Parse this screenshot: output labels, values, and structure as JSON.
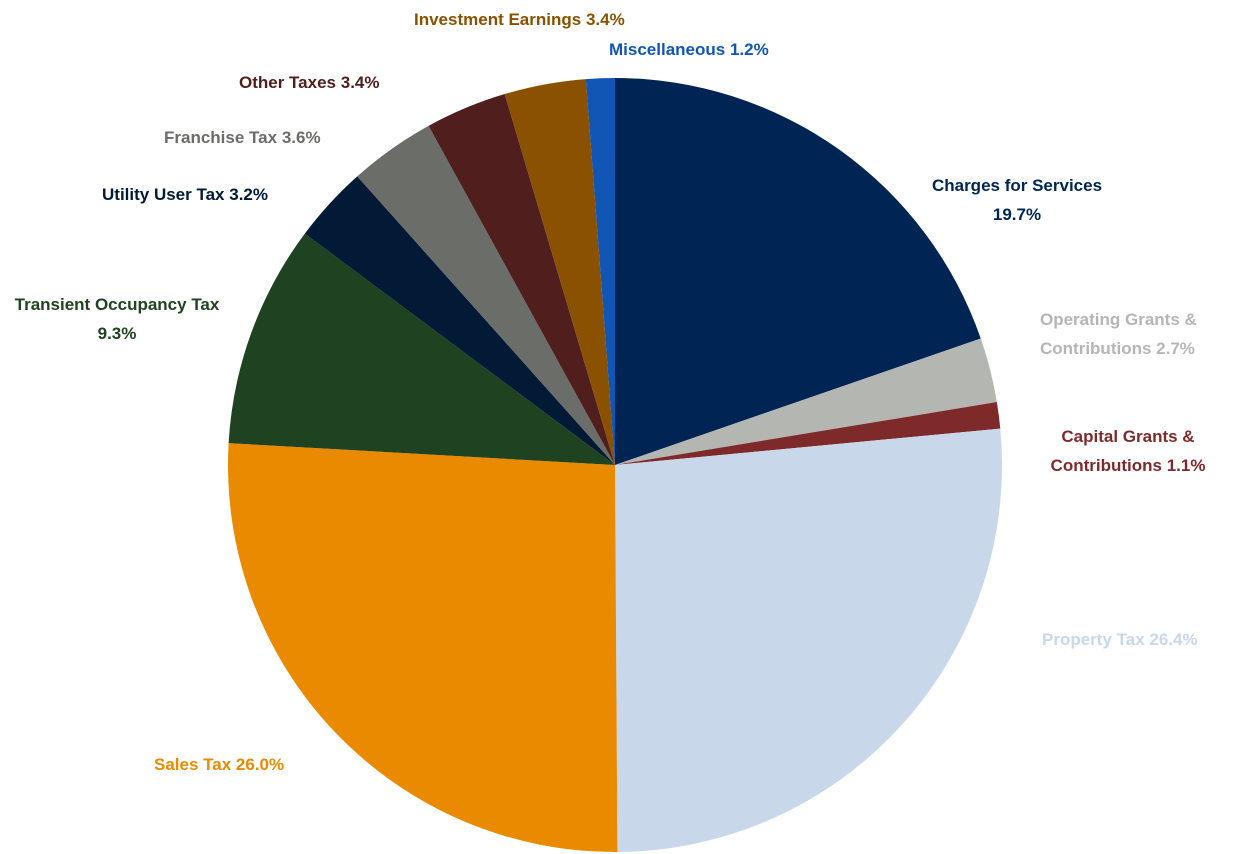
{
  "chart_data": {
    "type": "pie",
    "categories": [
      "Charges for Services",
      "Operating Grants & Contributions",
      "Capital Grants & Contributions",
      "Property Tax",
      "Sales Tax",
      "Transient Occupancy Tax",
      "Utility User Tax",
      "Franchise Tax",
      "Other Taxes",
      "Investment Earnings",
      "Miscellaneous"
    ],
    "values": [
      19.7,
      2.7,
      1.1,
      26.4,
      26.0,
      9.3,
      3.2,
      3.6,
      3.4,
      3.4,
      1.2
    ],
    "value_labels": [
      "19.7%",
      "2.7%",
      "1.1%",
      "26.4%",
      "26.0%",
      "9.3%",
      "3.2%",
      "3.6%",
      "3.4%",
      "3.4%",
      "1.2%"
    ],
    "colors": [
      "#002554",
      "#b4b7b1",
      "#7f2a2a",
      "#c8d8ea",
      "#ea8a00",
      "#1f4220",
      "#021a36",
      "#6b6d68",
      "#511e1e",
      "#8a5200",
      "#1155b5"
    ]
  }
}
